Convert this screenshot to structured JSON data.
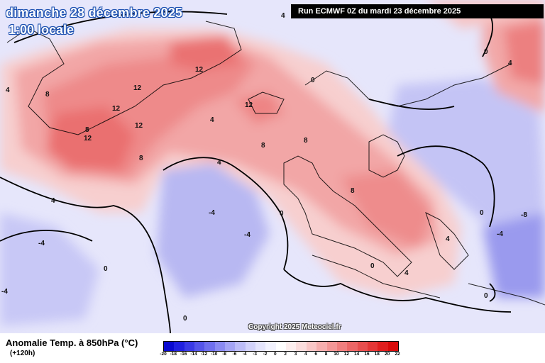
{
  "header": {
    "date_title": "dimanche 28 décembre 2025",
    "time_title": "1:00 locale",
    "run_info": "Run ECMWF 0Z du mardi 23 décembre 2025"
  },
  "footer": {
    "variable_title": "Anomalie Temp. à 850hPa (°C)",
    "lead_time": "(+120h)",
    "copyright": "Copyright 2025 Meteociel.fr"
  },
  "legend": {
    "values": [
      "-20",
      "-18",
      "-16",
      "-14",
      "-12",
      "-10",
      "-8",
      "-6",
      "-4",
      "-3",
      "-2",
      "0",
      "2",
      "3",
      "4",
      "6",
      "8",
      "10",
      "12",
      "14",
      "16",
      "18",
      "20",
      "22"
    ],
    "colors": [
      "#0a0ad0",
      "#2020e0",
      "#3a3ae6",
      "#5555ea",
      "#6f6fee",
      "#8a8af1",
      "#a4a4f4",
      "#bcbcf7",
      "#d2d2fa",
      "#e4e4fc",
      "#f2f2fe",
      "#ffffff",
      "#fdeeee",
      "#fbdcdc",
      "#f9c6c6",
      "#f6aeae",
      "#f39696",
      "#f07e7e",
      "#ec6666",
      "#e84e4e",
      "#e43636",
      "#e01e1e",
      "#d80a0a"
    ]
  },
  "isotherm_labels": [
    "12",
    "12",
    "12",
    "12",
    "12",
    "12",
    "8",
    "8",
    "8",
    "8",
    "8",
    "8",
    "4",
    "4",
    "4",
    "4",
    "4",
    "4",
    "4",
    "4",
    "0",
    "0",
    "0",
    "0",
    "0",
    "0",
    "0",
    "0",
    "-4",
    "-4",
    "-4",
    "-4",
    "-4",
    "-8"
  ]
}
